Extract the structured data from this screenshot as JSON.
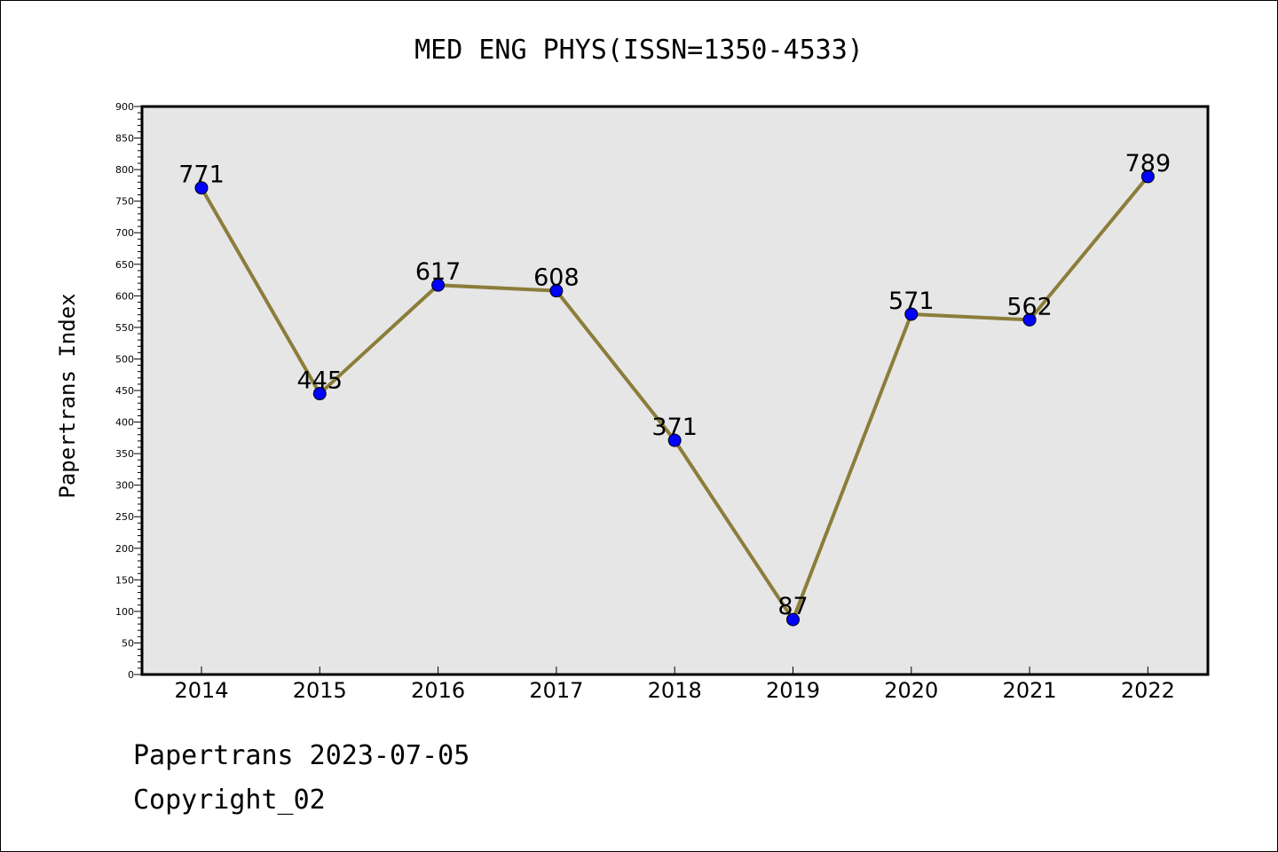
{
  "chart_data": {
    "type": "line",
    "title": "MED ENG PHYS(ISSN=1350-4533)",
    "xlabel": "",
    "ylabel": "Papertrans Index",
    "categories": [
      "2014",
      "2015",
      "2016",
      "2017",
      "2018",
      "2019",
      "2020",
      "2021",
      "2022"
    ],
    "values": [
      771,
      445,
      617,
      608,
      371,
      87,
      571,
      562,
      789
    ],
    "data_labels": [
      "771",
      "445",
      "617",
      "608",
      "371",
      "87",
      "571",
      "562",
      "789"
    ],
    "ylim": [
      0,
      900
    ],
    "yticks": [
      0,
      50,
      100,
      150,
      200,
      250,
      300,
      350,
      400,
      450,
      500,
      550,
      600,
      650,
      700,
      750,
      800,
      850,
      900
    ],
    "grid": false,
    "legend": "none",
    "colors": {
      "line": "#8b7d3a",
      "marker": "#0000ff",
      "plot_background": "#e6e6e6",
      "axes": "#000000"
    }
  },
  "footer": {
    "line1": "Papertrans 2023-07-05",
    "line2": "Copyright_02"
  }
}
